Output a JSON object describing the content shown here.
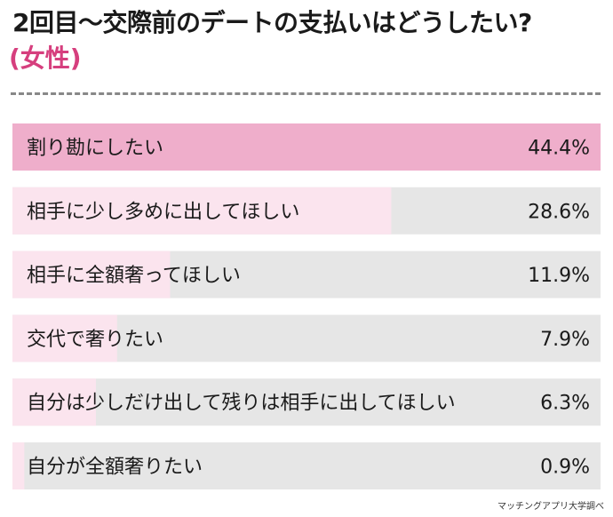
{
  "chart_data": {
    "type": "bar",
    "orientation": "horizontal",
    "title": "2回目〜交際前のデートの支払いはどうしたい?",
    "subtitle": "(女性)",
    "categories": [
      "割り勘にしたい",
      "相手に少し多めに出してほしい",
      "相手に全額奢ってほしい",
      "交代で奢りたい",
      "自分は少しだけ出して残りは相手に出してほしい",
      "自分が全額奢りたい"
    ],
    "values": [
      44.4,
      28.6,
      11.9,
      7.9,
      6.3,
      0.9
    ],
    "value_labels": [
      "44.4%",
      "28.6%",
      "11.9%",
      "7.9%",
      "6.3%",
      "0.9%"
    ],
    "xlim": [
      0,
      44.4
    ],
    "colors": {
      "top_bar": "#efaecb",
      "bar": "#fbe4ee",
      "track": "#e6e6e6",
      "accent": "#d63f7e"
    },
    "source": "マッチングアプリ大学調べ"
  }
}
